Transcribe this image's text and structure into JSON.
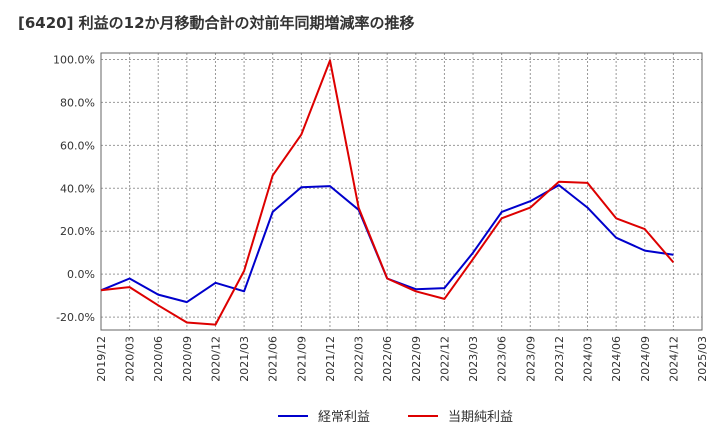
{
  "chart_data": {
    "type": "line",
    "title": "[6420]  利益の12か月移動合計の対前年同期増減率の推移",
    "xlabel": "",
    "ylabel": "",
    "ylim": [
      -26,
      103
    ],
    "yticks": [
      -20,
      0,
      20,
      40,
      60,
      80,
      100
    ],
    "ytick_labels": [
      "-20.0%",
      "0.0%",
      "20.0%",
      "40.0%",
      "60.0%",
      "80.0%",
      "100.0%"
    ],
    "x": [
      "2019/12",
      "2020/03",
      "2020/06",
      "2020/09",
      "2020/12",
      "2021/03",
      "2021/06",
      "2021/09",
      "2021/12",
      "2022/03",
      "2022/06",
      "2022/09",
      "2022/12",
      "2023/03",
      "2023/06",
      "2023/09",
      "2023/12",
      "2024/03",
      "2024/06",
      "2024/09",
      "2024/12",
      "2025/03"
    ],
    "grid": true,
    "legend_position": "bottom",
    "series": [
      {
        "name": "経常利益",
        "color": "#0000cc",
        "values": [
          -7.5,
          -2.0,
          -9.5,
          -13.0,
          -4.0,
          -8.0,
          29.0,
          40.5,
          41.0,
          30.0,
          -2.0,
          -7.0,
          -6.5,
          10.0,
          29.0,
          34.0,
          41.5,
          31.0,
          17.0,
          11.0,
          9.0,
          null
        ]
      },
      {
        "name": "当期純利益",
        "color": "#dd0000",
        "values": [
          -7.5,
          -6.0,
          -14.5,
          -22.5,
          -23.5,
          1.5,
          46.0,
          65.0,
          99.5,
          31.0,
          -2.0,
          -8.0,
          -11.5,
          7.0,
          26.0,
          31.0,
          43.0,
          42.5,
          26.0,
          21.0,
          5.5,
          null
        ]
      }
    ]
  }
}
